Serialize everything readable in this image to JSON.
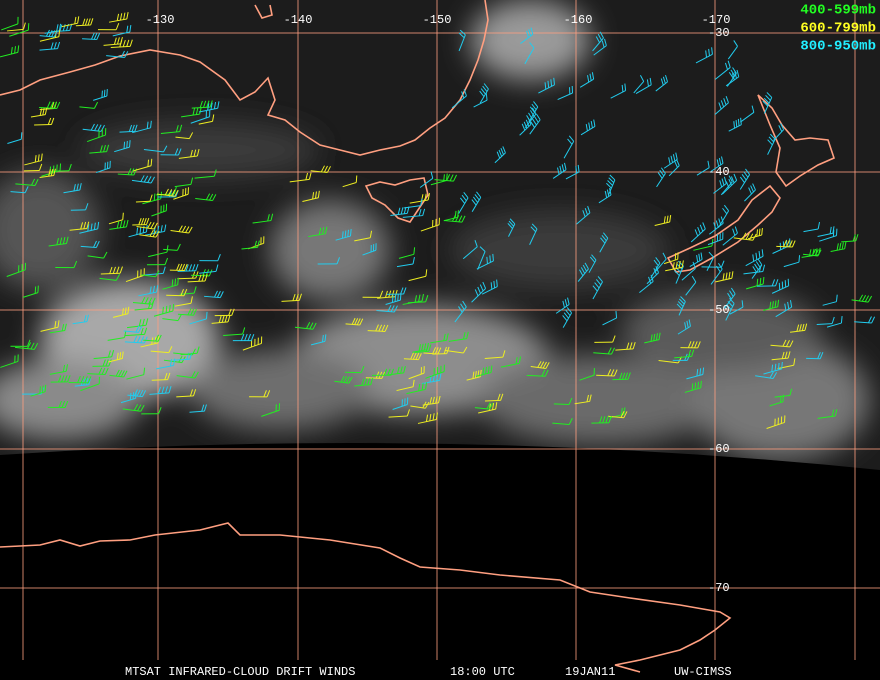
{
  "map": {
    "longitude_labels": [
      "-130",
      "-140",
      "-150",
      "-160",
      "-170"
    ],
    "latitude_labels": [
      "-30",
      "-40",
      "-50",
      "-60",
      "-70"
    ]
  },
  "legend": [
    "400-599mb",
    "600-799mb",
    "800-950mb"
  ],
  "footer": [
    "MTSAT INFRARED-CLOUD DRIFT WINDS",
    "18:00 UTC",
    "19JAN11",
    "UW-CIMSS"
  ]
}
